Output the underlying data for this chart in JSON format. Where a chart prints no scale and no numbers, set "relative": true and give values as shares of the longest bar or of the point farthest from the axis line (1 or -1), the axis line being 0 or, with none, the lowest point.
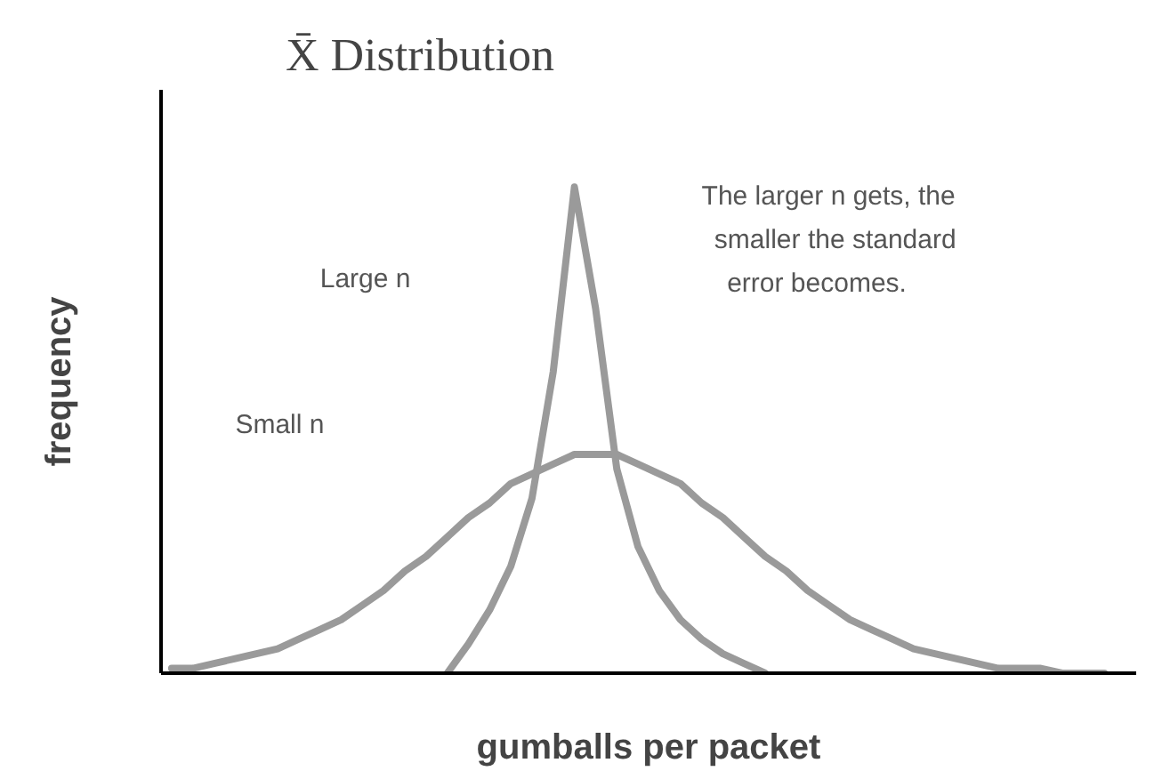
{
  "chart_data": {
    "type": "line",
    "title": "X̄ Distribution",
    "xlabel": "gumballs per packet",
    "ylabel": "frequency",
    "relative": true,
    "categories": [
      null,
      null,
      null,
      null,
      null,
      null,
      null,
      null,
      null,
      null,
      null,
      null,
      null,
      null,
      null,
      null,
      null,
      null,
      null,
      null,
      null,
      null,
      null,
      null,
      null,
      null,
      null,
      null,
      null,
      null,
      null,
      null,
      null,
      null,
      null,
      null,
      null,
      null,
      null,
      null,
      null,
      null,
      null,
      null,
      null
    ],
    "series": [
      {
        "color": "#9a9a9a",
        "values": [
          0.01,
          0.01,
          0.02,
          0.03,
          0.04,
          0.05,
          0.07,
          0.09,
          0.11,
          0.14,
          0.17,
          0.21,
          0.24,
          0.28,
          0.32,
          0.35,
          0.39,
          0.41,
          0.43,
          0.45,
          0.45,
          0.45,
          0.43,
          0.41,
          0.39,
          0.35,
          0.32,
          0.28,
          0.24,
          0.21,
          0.17,
          0.14,
          0.11,
          0.09,
          0.07,
          0.05,
          0.04,
          0.03,
          0.02,
          0.01,
          0.01,
          0.01,
          0.0,
          0.0,
          0.0
        ]
      },
      {
        "color": "#9a9a9a",
        "values": [
          null,
          null,
          null,
          null,
          null,
          null,
          null,
          null,
          null,
          null,
          null,
          null,
          null,
          0.0,
          0.06,
          0.13,
          0.22,
          0.36,
          0.62,
          1.0,
          0.75,
          0.42,
          0.26,
          0.17,
          0.11,
          0.07,
          0.04,
          0.02,
          0.0,
          null,
          null,
          null,
          null,
          null,
          null,
          null,
          null,
          null,
          null,
          null,
          null,
          null,
          null,
          null,
          null
        ]
      }
    ],
    "annotations": [
      "Small n",
      "Large n",
      "The larger n gets, the smaller the standard error becomes."
    ]
  }
}
